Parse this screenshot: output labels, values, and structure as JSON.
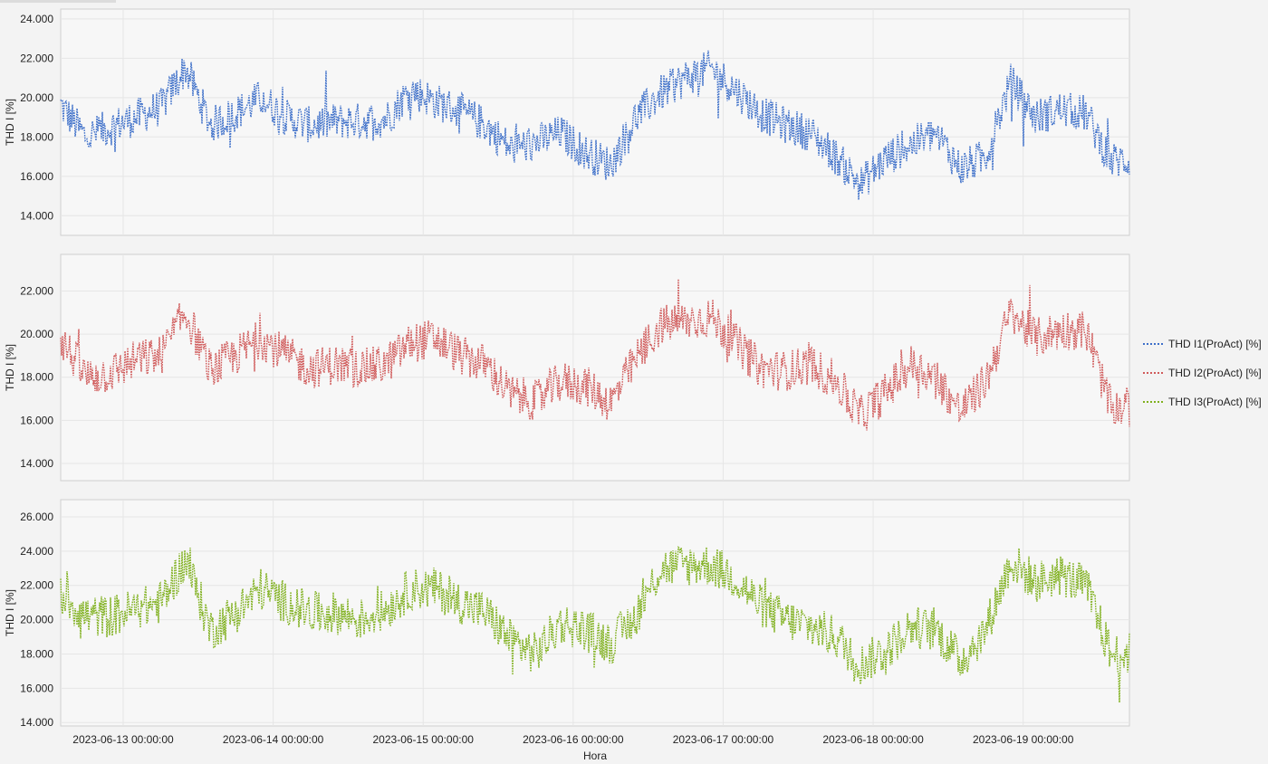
{
  "colors": {
    "background": "#f3f3f3",
    "plot_background": "#f7f7f7",
    "plot_border": "#cfcfcf",
    "grid": "#e6e6e6"
  },
  "legend": {
    "items": [
      {
        "label": "THD I1(ProAct) [%]",
        "color": "#3d6fc9"
      },
      {
        "label": "THD I2(ProAct) [%]",
        "color": "#d05a5a"
      },
      {
        "label": "THD I3(ProAct) [%]",
        "color": "#7fb01d"
      }
    ]
  },
  "chart_data": [
    {
      "type": "line",
      "title": "",
      "ylabel": "THD I [%]",
      "xlabel": "",
      "ylim": [
        13,
        24.5
      ],
      "yticks": [
        "14.000",
        "16.000",
        "18.000",
        "20.000",
        "22.000",
        "24.000"
      ],
      "ytick_values": [
        14,
        16,
        18,
        20,
        22,
        24
      ],
      "grid": true,
      "series": [
        {
          "name": "THD I1(ProAct) [%]",
          "color": "#3d6fc9",
          "x": [
            "2023-06-12 14:00",
            "2023-06-12 18:00",
            "2023-06-12 22:00",
            "2023-06-13 02:00",
            "2023-06-13 06:00",
            "2023-06-13 10:00",
            "2023-06-13 14:00",
            "2023-06-13 18:00",
            "2023-06-13 22:00",
            "2023-06-14 02:00",
            "2023-06-14 06:00",
            "2023-06-14 10:00",
            "2023-06-14 14:00",
            "2023-06-14 18:00",
            "2023-06-14 22:00",
            "2023-06-15 02:00",
            "2023-06-15 06:00",
            "2023-06-15 10:00",
            "2023-06-15 14:00",
            "2023-06-15 18:00",
            "2023-06-15 22:00",
            "2023-06-16 02:00",
            "2023-06-16 06:00",
            "2023-06-16 10:00",
            "2023-06-16 14:00",
            "2023-06-16 18:00",
            "2023-06-16 22:00",
            "2023-06-17 02:00",
            "2023-06-17 06:00",
            "2023-06-17 10:00",
            "2023-06-17 14:00",
            "2023-06-17 18:00",
            "2023-06-17 22:00",
            "2023-06-18 02:00",
            "2023-06-18 06:00",
            "2023-06-18 10:00",
            "2023-06-18 14:00",
            "2023-06-18 18:00",
            "2023-06-18 22:00",
            "2023-06-19 02:00",
            "2023-06-19 06:00",
            "2023-06-19 10:00",
            "2023-06-19 14:00"
          ],
          "y": [
            19.6,
            18.0,
            18.5,
            19.0,
            19.5,
            21.5,
            18.6,
            19.2,
            20.0,
            19.0,
            18.6,
            18.8,
            18.8,
            18.9,
            20.4,
            19.8,
            19.3,
            18.6,
            17.4,
            17.7,
            18.2,
            17.2,
            16.6,
            19.0,
            20.2,
            21.0,
            21.5,
            20.4,
            19.2,
            18.6,
            18.2,
            17.0,
            15.6,
            16.9,
            17.6,
            18.2,
            16.4,
            17.0,
            20.8,
            19.0,
            19.4,
            19.2,
            16.8
          ]
        }
      ]
    },
    {
      "type": "line",
      "title": "",
      "ylabel": "THD I [%]",
      "xlabel": "",
      "ylim": [
        13.2,
        23.7
      ],
      "yticks": [
        "14.000",
        "16.000",
        "18.000",
        "20.000",
        "22.000"
      ],
      "ytick_values": [
        14,
        16,
        18,
        20,
        22
      ],
      "grid": true,
      "series": [
        {
          "name": "THD I2(ProAct) [%]",
          "color": "#d05a5a",
          "x": [
            "2023-06-12 14:00",
            "2023-06-12 18:00",
            "2023-06-12 22:00",
            "2023-06-13 02:00",
            "2023-06-13 06:00",
            "2023-06-13 10:00",
            "2023-06-13 14:00",
            "2023-06-13 18:00",
            "2023-06-13 22:00",
            "2023-06-14 02:00",
            "2023-06-14 06:00",
            "2023-06-14 10:00",
            "2023-06-14 14:00",
            "2023-06-14 18:00",
            "2023-06-14 22:00",
            "2023-06-15 02:00",
            "2023-06-15 06:00",
            "2023-06-15 10:00",
            "2023-06-15 14:00",
            "2023-06-15 18:00",
            "2023-06-15 22:00",
            "2023-06-16 02:00",
            "2023-06-16 06:00",
            "2023-06-16 10:00",
            "2023-06-16 14:00",
            "2023-06-16 18:00",
            "2023-06-16 22:00",
            "2023-06-17 02:00",
            "2023-06-17 06:00",
            "2023-06-17 10:00",
            "2023-06-17 14:00",
            "2023-06-17 18:00",
            "2023-06-17 22:00",
            "2023-06-18 02:00",
            "2023-06-18 06:00",
            "2023-06-18 10:00",
            "2023-06-18 14:00",
            "2023-06-18 18:00",
            "2023-06-18 22:00",
            "2023-06-19 02:00",
            "2023-06-19 06:00",
            "2023-06-19 10:00",
            "2023-06-19 14:00"
          ],
          "y": [
            19.8,
            18.0,
            18.2,
            18.8,
            19.0,
            21.0,
            18.3,
            19.0,
            19.8,
            19.0,
            18.4,
            18.6,
            18.4,
            18.6,
            19.6,
            19.8,
            19.0,
            18.6,
            17.2,
            16.9,
            17.8,
            17.6,
            16.8,
            18.8,
            20.4,
            20.6,
            20.8,
            19.6,
            18.4,
            18.3,
            18.6,
            17.8,
            16.2,
            17.3,
            18.6,
            18.0,
            16.4,
            17.8,
            21.0,
            19.8,
            20.2,
            20.2,
            16.6
          ]
        }
      ]
    },
    {
      "type": "line",
      "title": "",
      "ylabel": "THD I [%]",
      "xlabel": "Hora",
      "ylim": [
        13.8,
        27.0
      ],
      "yticks": [
        "14.000",
        "16.000",
        "18.000",
        "20.000",
        "22.000",
        "24.000",
        "26.000"
      ],
      "ytick_values": [
        14,
        16,
        18,
        20,
        22,
        24,
        26
      ],
      "xticks": [
        "2023-06-13 00:00:00",
        "2023-06-14 00:00:00",
        "2023-06-15 00:00:00",
        "2023-06-16 00:00:00",
        "2023-06-17 00:00:00",
        "2023-06-18 00:00:00",
        "2023-06-19 00:00:00"
      ],
      "xlim": [
        "2023-06-12 14:00",
        "2023-06-19 17:00"
      ],
      "grid": true,
      "series": [
        {
          "name": "THD I3(ProAct) [%]",
          "color": "#7fb01d",
          "x": [
            "2023-06-12 14:00",
            "2023-06-12 18:00",
            "2023-06-12 22:00",
            "2023-06-13 02:00",
            "2023-06-13 06:00",
            "2023-06-13 10:00",
            "2023-06-13 14:00",
            "2023-06-13 18:00",
            "2023-06-13 22:00",
            "2023-06-14 02:00",
            "2023-06-14 06:00",
            "2023-06-14 10:00",
            "2023-06-14 14:00",
            "2023-06-14 18:00",
            "2023-06-14 22:00",
            "2023-06-15 02:00",
            "2023-06-15 06:00",
            "2023-06-15 10:00",
            "2023-06-15 14:00",
            "2023-06-15 18:00",
            "2023-06-15 22:00",
            "2023-06-16 02:00",
            "2023-06-16 06:00",
            "2023-06-16 10:00",
            "2023-06-16 14:00",
            "2023-06-16 18:00",
            "2023-06-16 22:00",
            "2023-06-17 02:00",
            "2023-06-17 06:00",
            "2023-06-17 10:00",
            "2023-06-17 14:00",
            "2023-06-17 18:00",
            "2023-06-17 22:00",
            "2023-06-18 02:00",
            "2023-06-18 06:00",
            "2023-06-18 10:00",
            "2023-06-18 14:00",
            "2023-06-18 18:00",
            "2023-06-18 22:00",
            "2023-06-19 02:00",
            "2023-06-19 06:00",
            "2023-06-19 10:00",
            "2023-06-19 14:00"
          ],
          "y": [
            21.5,
            20.2,
            20.2,
            20.6,
            21.0,
            23.5,
            19.4,
            20.4,
            21.8,
            21.0,
            20.4,
            20.4,
            20.0,
            20.6,
            21.8,
            21.8,
            21.0,
            20.4,
            18.8,
            18.0,
            19.8,
            19.4,
            18.6,
            20.2,
            23.0,
            23.2,
            23.2,
            22.4,
            20.8,
            20.0,
            19.6,
            19.0,
            17.4,
            18.2,
            19.6,
            19.4,
            17.6,
            19.4,
            23.4,
            22.2,
            22.6,
            22.0,
            18.0
          ]
        }
      ]
    }
  ]
}
